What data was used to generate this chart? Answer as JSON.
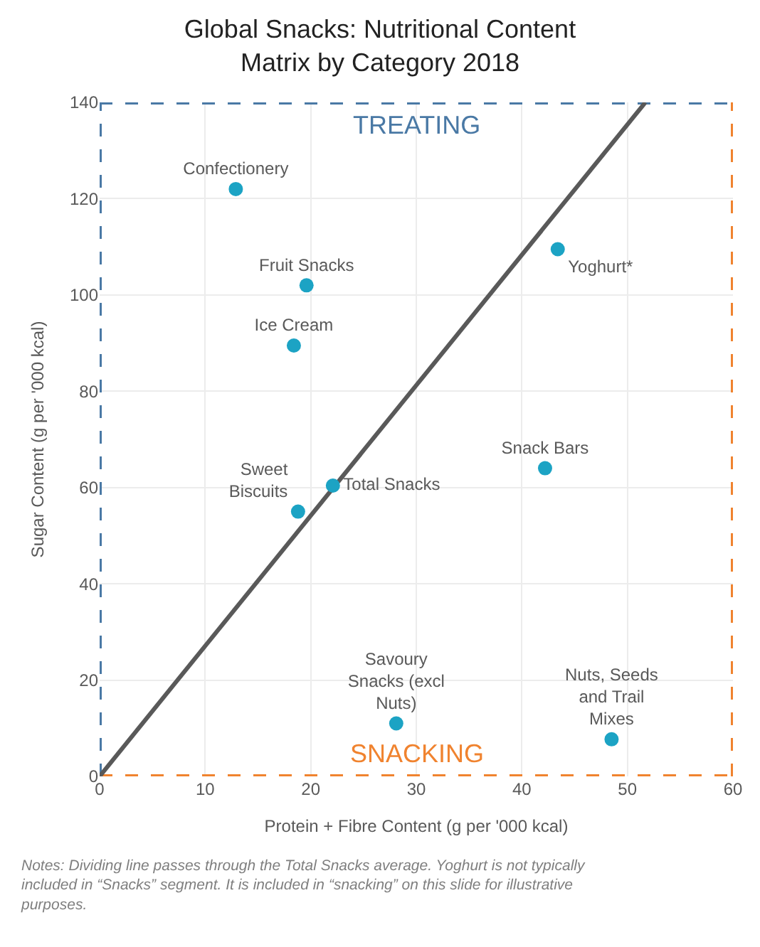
{
  "chart_data": {
    "type": "scatter",
    "title": "Global Snacks: Nutritional Content\nMatrix by Category 2018",
    "xlabel": "Protein + Fibre Content (g per '000 kcal)",
    "ylabel": "Sugar Content (g per '000 kcal)",
    "series": [
      {
        "color": "#1ca3c4",
        "marker": "circle",
        "x": [
          12.9,
          19.6,
          18.4,
          43.4,
          42.2,
          22.1,
          18.8,
          28.1,
          48.5
        ],
        "values": [
          122,
          102,
          89.5,
          109.5,
          64,
          60.4,
          55,
          11,
          7.7
        ],
        "value_labels": [
          "Confectionery",
          "Fruit Snacks",
          "Ice Cream",
          "Yoghurt*",
          "Snack Bars",
          "Total Snacks",
          "Sweet\nBiscuits",
          "Savoury\nSnacks (excl\nNuts)",
          "Nuts, Seeds\nand Trail\nMixes"
        ]
      },
      {
        "type": "line",
        "color": "#595959",
        "x": [
          0,
          51.7
        ],
        "values": [
          0,
          140
        ]
      }
    ],
    "ref_lines": [
      {
        "axis": "y",
        "value": 140,
        "color": "#4a79a5",
        "line_style": "dashed"
      },
      {
        "axis": "x",
        "value": 0,
        "color": "#4a79a5",
        "line_style": "dashed"
      },
      {
        "axis": "y",
        "value": 0,
        "color": "#f0832f",
        "line_style": "dashed"
      },
      {
        "axis": "x",
        "value": 60,
        "color": "#f0832f",
        "line_style": "dashed"
      }
    ],
    "annotations": [
      "TREATING",
      "SNACKING",
      "Notes: Dividing line passes through the Total Snacks average. Yoghurt is not typically included in “Snacks” segment. It is included in “snacking” on this slide for illustrative purposes."
    ],
    "xlim": [
      0,
      60
    ],
    "xticks": [
      0,
      10,
      20,
      30,
      40,
      50,
      60
    ],
    "ylim": [
      0,
      140
    ],
    "yticks": [
      0,
      20,
      40,
      60,
      80,
      100,
      120,
      140
    ],
    "grid": true,
    "legend": false
  }
}
